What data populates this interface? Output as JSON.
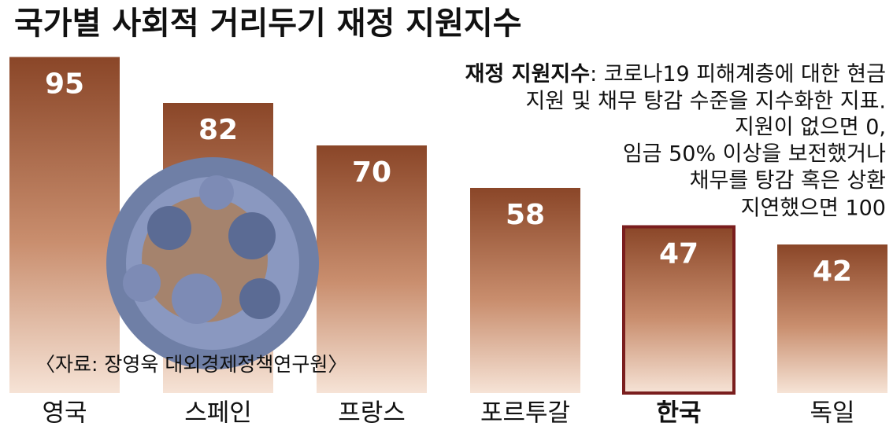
{
  "chart_data": {
    "type": "bar",
    "title": "국가별 사회적 거리두기 재정 지원지수",
    "categories": [
      "영국",
      "스페인",
      "프랑스",
      "포르투갈",
      "한국",
      "독일"
    ],
    "values": [
      95,
      82,
      70,
      58,
      47,
      42
    ],
    "highlight": 4,
    "note": {
      "label": "재정 지원지수",
      "lines": [
        ": 코로나19 피해계층에 대한 현금",
        "지원 및 채무 탕감 수준을 지수화한 지표.",
        "지원이 없으면 0,",
        "임금 50% 이상을 보전했거나",
        "채무를 탕감 혹은 상환",
        "지연했으면 100"
      ]
    },
    "source": "〈자료: 장영욱 대외경제정책연구원〉"
  }
}
